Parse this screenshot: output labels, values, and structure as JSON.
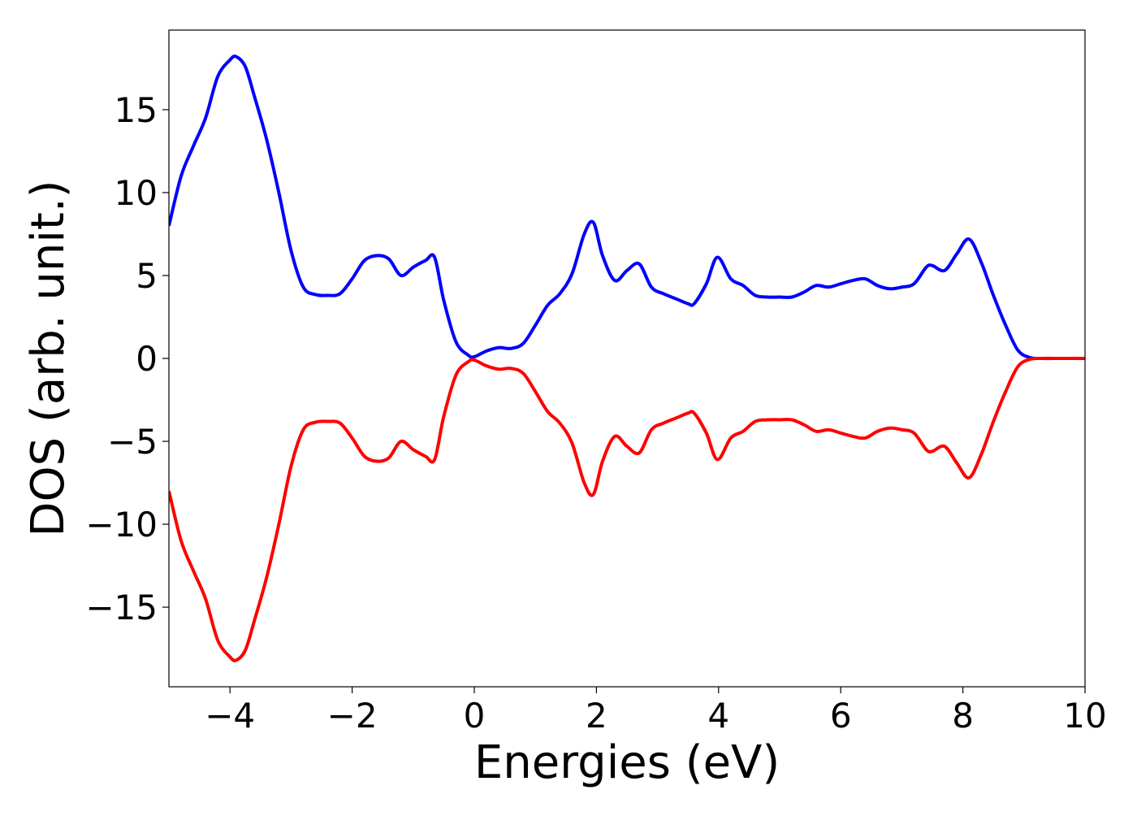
{
  "chart_data": {
    "type": "line",
    "title": "",
    "xlabel": "Energies (eV)",
    "ylabel": "DOS (arb. unit.)",
    "xlim": [
      -5,
      10
    ],
    "ylim": [
      -19.8,
      19.8
    ],
    "grid": false,
    "legend": "none",
    "x_ticks": [
      -4,
      -2,
      0,
      2,
      4,
      6,
      8,
      10
    ],
    "x_tick_labels": [
      "−4",
      "−2",
      "0",
      "2",
      "4",
      "6",
      "8",
      "10"
    ],
    "y_ticks": [
      -15,
      -10,
      -5,
      0,
      5,
      10,
      15
    ],
    "y_tick_labels": [
      "−15",
      "−10",
      "−5",
      "0",
      "5",
      "10",
      "15"
    ],
    "x": [
      -5.0,
      -4.8,
      -4.6,
      -4.4,
      -4.2,
      -4.0,
      -3.9,
      -3.75,
      -3.6,
      -3.4,
      -3.2,
      -3.0,
      -2.8,
      -2.6,
      -2.4,
      -2.2,
      -2.0,
      -1.8,
      -1.6,
      -1.4,
      -1.2,
      -1.0,
      -0.8,
      -0.65,
      -0.5,
      -0.3,
      -0.1,
      0.0,
      0.2,
      0.4,
      0.6,
      0.8,
      1.0,
      1.2,
      1.4,
      1.6,
      1.8,
      1.95,
      2.1,
      2.3,
      2.5,
      2.7,
      2.9,
      3.1,
      3.3,
      3.5,
      3.6,
      3.8,
      3.98,
      4.2,
      4.4,
      4.6,
      4.8,
      5.0,
      5.2,
      5.4,
      5.6,
      5.8,
      6.0,
      6.2,
      6.4,
      6.6,
      6.8,
      7.0,
      7.2,
      7.4,
      7.5,
      7.7,
      7.9,
      8.1,
      8.3,
      8.5,
      8.7,
      8.9,
      9.1,
      9.3,
      9.6,
      10.0
    ],
    "series": [
      {
        "color": "#0000ff",
        "values": [
          8.0,
          11.0,
          12.8,
          14.5,
          17.0,
          18.0,
          18.2,
          17.6,
          15.8,
          13.2,
          10.0,
          6.5,
          4.3,
          3.85,
          3.8,
          3.9,
          4.8,
          5.9,
          6.2,
          6.0,
          5.0,
          5.5,
          5.9,
          6.1,
          3.5,
          1.0,
          0.2,
          0.1,
          0.45,
          0.65,
          0.6,
          0.9,
          2.0,
          3.2,
          3.9,
          5.1,
          7.5,
          8.2,
          6.2,
          4.7,
          5.3,
          5.7,
          4.3,
          3.9,
          3.6,
          3.3,
          3.3,
          4.5,
          6.1,
          4.8,
          4.4,
          3.8,
          3.7,
          3.7,
          3.7,
          4.0,
          4.4,
          4.3,
          4.5,
          4.7,
          4.8,
          4.4,
          4.2,
          4.3,
          4.5,
          5.5,
          5.6,
          5.3,
          6.3,
          7.2,
          5.8,
          3.8,
          2.0,
          0.5,
          0.05,
          0.0,
          0.0,
          0.0
        ]
      },
      {
        "color": "#ff0000",
        "values": [
          -8.0,
          -11.0,
          -12.8,
          -14.5,
          -17.0,
          -18.0,
          -18.2,
          -17.6,
          -15.8,
          -13.2,
          -10.0,
          -6.5,
          -4.3,
          -3.85,
          -3.8,
          -3.9,
          -4.8,
          -5.9,
          -6.2,
          -6.0,
          -5.0,
          -5.5,
          -5.9,
          -6.1,
          -3.5,
          -1.0,
          -0.2,
          -0.1,
          -0.45,
          -0.65,
          -0.6,
          -0.9,
          -2.0,
          -3.2,
          -3.9,
          -5.1,
          -7.5,
          -8.2,
          -6.2,
          -4.7,
          -5.3,
          -5.7,
          -4.3,
          -3.9,
          -3.6,
          -3.3,
          -3.3,
          -4.5,
          -6.1,
          -4.8,
          -4.4,
          -3.8,
          -3.7,
          -3.7,
          -3.7,
          -4.0,
          -4.4,
          -4.3,
          -4.5,
          -4.7,
          -4.8,
          -4.4,
          -4.2,
          -4.3,
          -4.5,
          -5.5,
          -5.6,
          -5.3,
          -6.3,
          -7.2,
          -5.8,
          -3.8,
          -2.0,
          -0.5,
          -0.05,
          0.0,
          0.0,
          0.0
        ]
      }
    ]
  }
}
